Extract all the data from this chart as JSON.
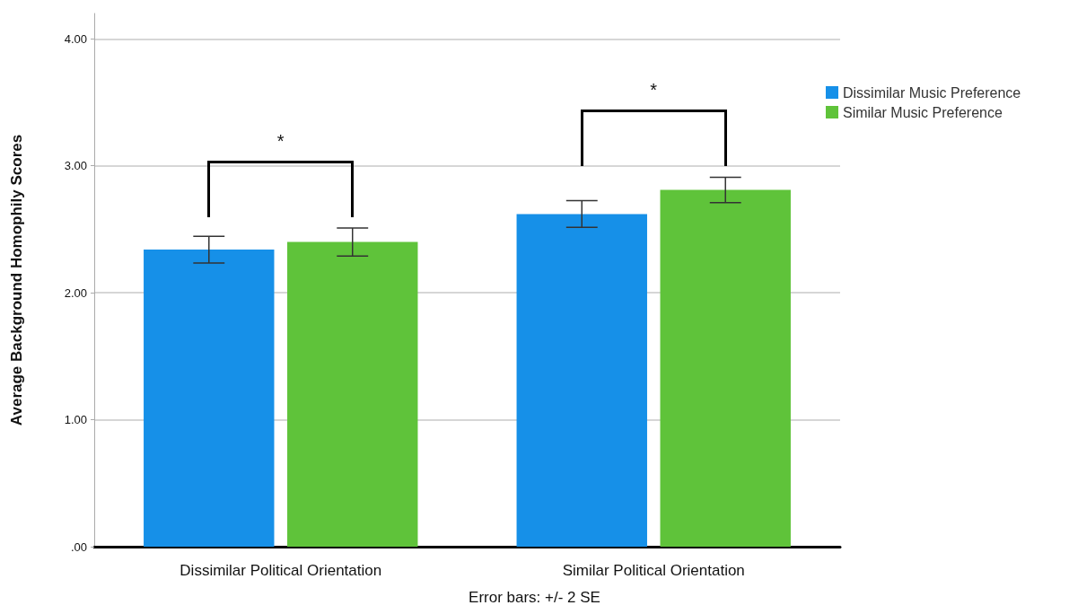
{
  "chart_data": {
    "type": "bar",
    "ylabel": "Average Background Homophily Scores",
    "categories": [
      "Dissimilar Political Orientation",
      "Similar Political Orientation"
    ],
    "series": [
      {
        "name": "Dissimilar Music Preference",
        "color": "#1690e8",
        "values": [
          2.34,
          2.62
        ],
        "errors": [
          0.105,
          0.105
        ]
      },
      {
        "name": "Similar Music Preference",
        "color": "#5fc33a",
        "values": [
          2.4,
          2.81
        ],
        "errors": [
          0.11,
          0.1
        ]
      }
    ],
    "ylim": [
      0,
      4.2
    ],
    "yticks": [
      {
        "value": 0,
        "label": ".00"
      },
      {
        "value": 1,
        "label": "1.00"
      },
      {
        "value": 2,
        "label": "2.00"
      },
      {
        "value": 3,
        "label": "3.00"
      },
      {
        "value": 4,
        "label": "4.00"
      }
    ],
    "grid": "y",
    "legend": "top right",
    "annotations": [
      "*",
      "*",
      "Error bars: +/- 2 SE"
    ]
  }
}
